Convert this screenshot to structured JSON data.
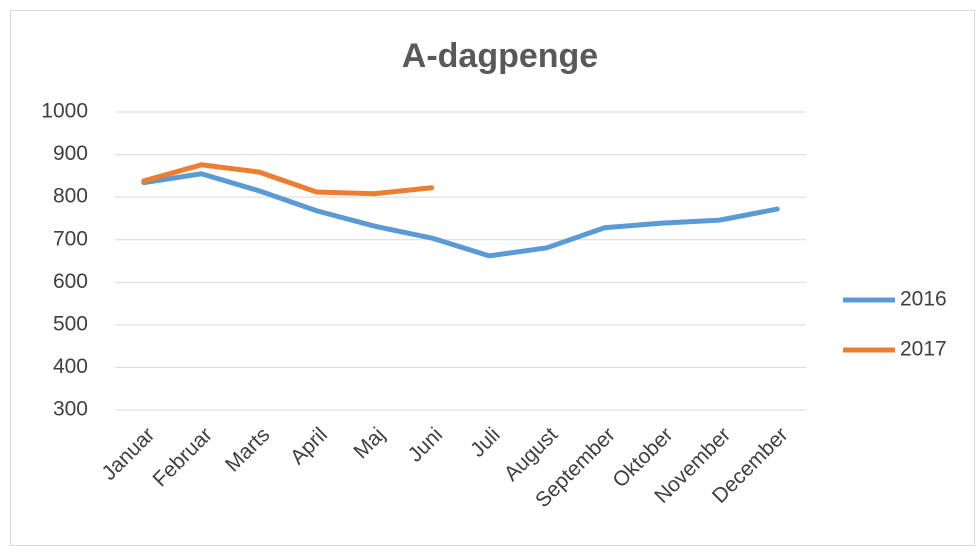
{
  "chart_data": {
    "type": "line",
    "title": "A-dagpenge",
    "categories": [
      "Januar",
      "Februar",
      "Marts",
      "April",
      "Maj",
      "Juni",
      "Juli",
      "August",
      "September",
      "Oktober",
      "November",
      "December"
    ],
    "series": [
      {
        "name": "2016",
        "color": "#5b9bd5",
        "values": [
          834,
          855,
          815,
          768,
          732,
          704,
          662,
          681,
          728,
          739,
          746,
          772
        ]
      },
      {
        "name": "2017",
        "color": "#ed7d31",
        "values": [
          838,
          876,
          859,
          812,
          808,
          822,
          null,
          null,
          null,
          null,
          null,
          null
        ]
      }
    ],
    "ylim": [
      300,
      1000
    ],
    "yticks": [
      300,
      400,
      500,
      600,
      700,
      800,
      900,
      1000
    ],
    "grid": true,
    "legend": "right"
  }
}
